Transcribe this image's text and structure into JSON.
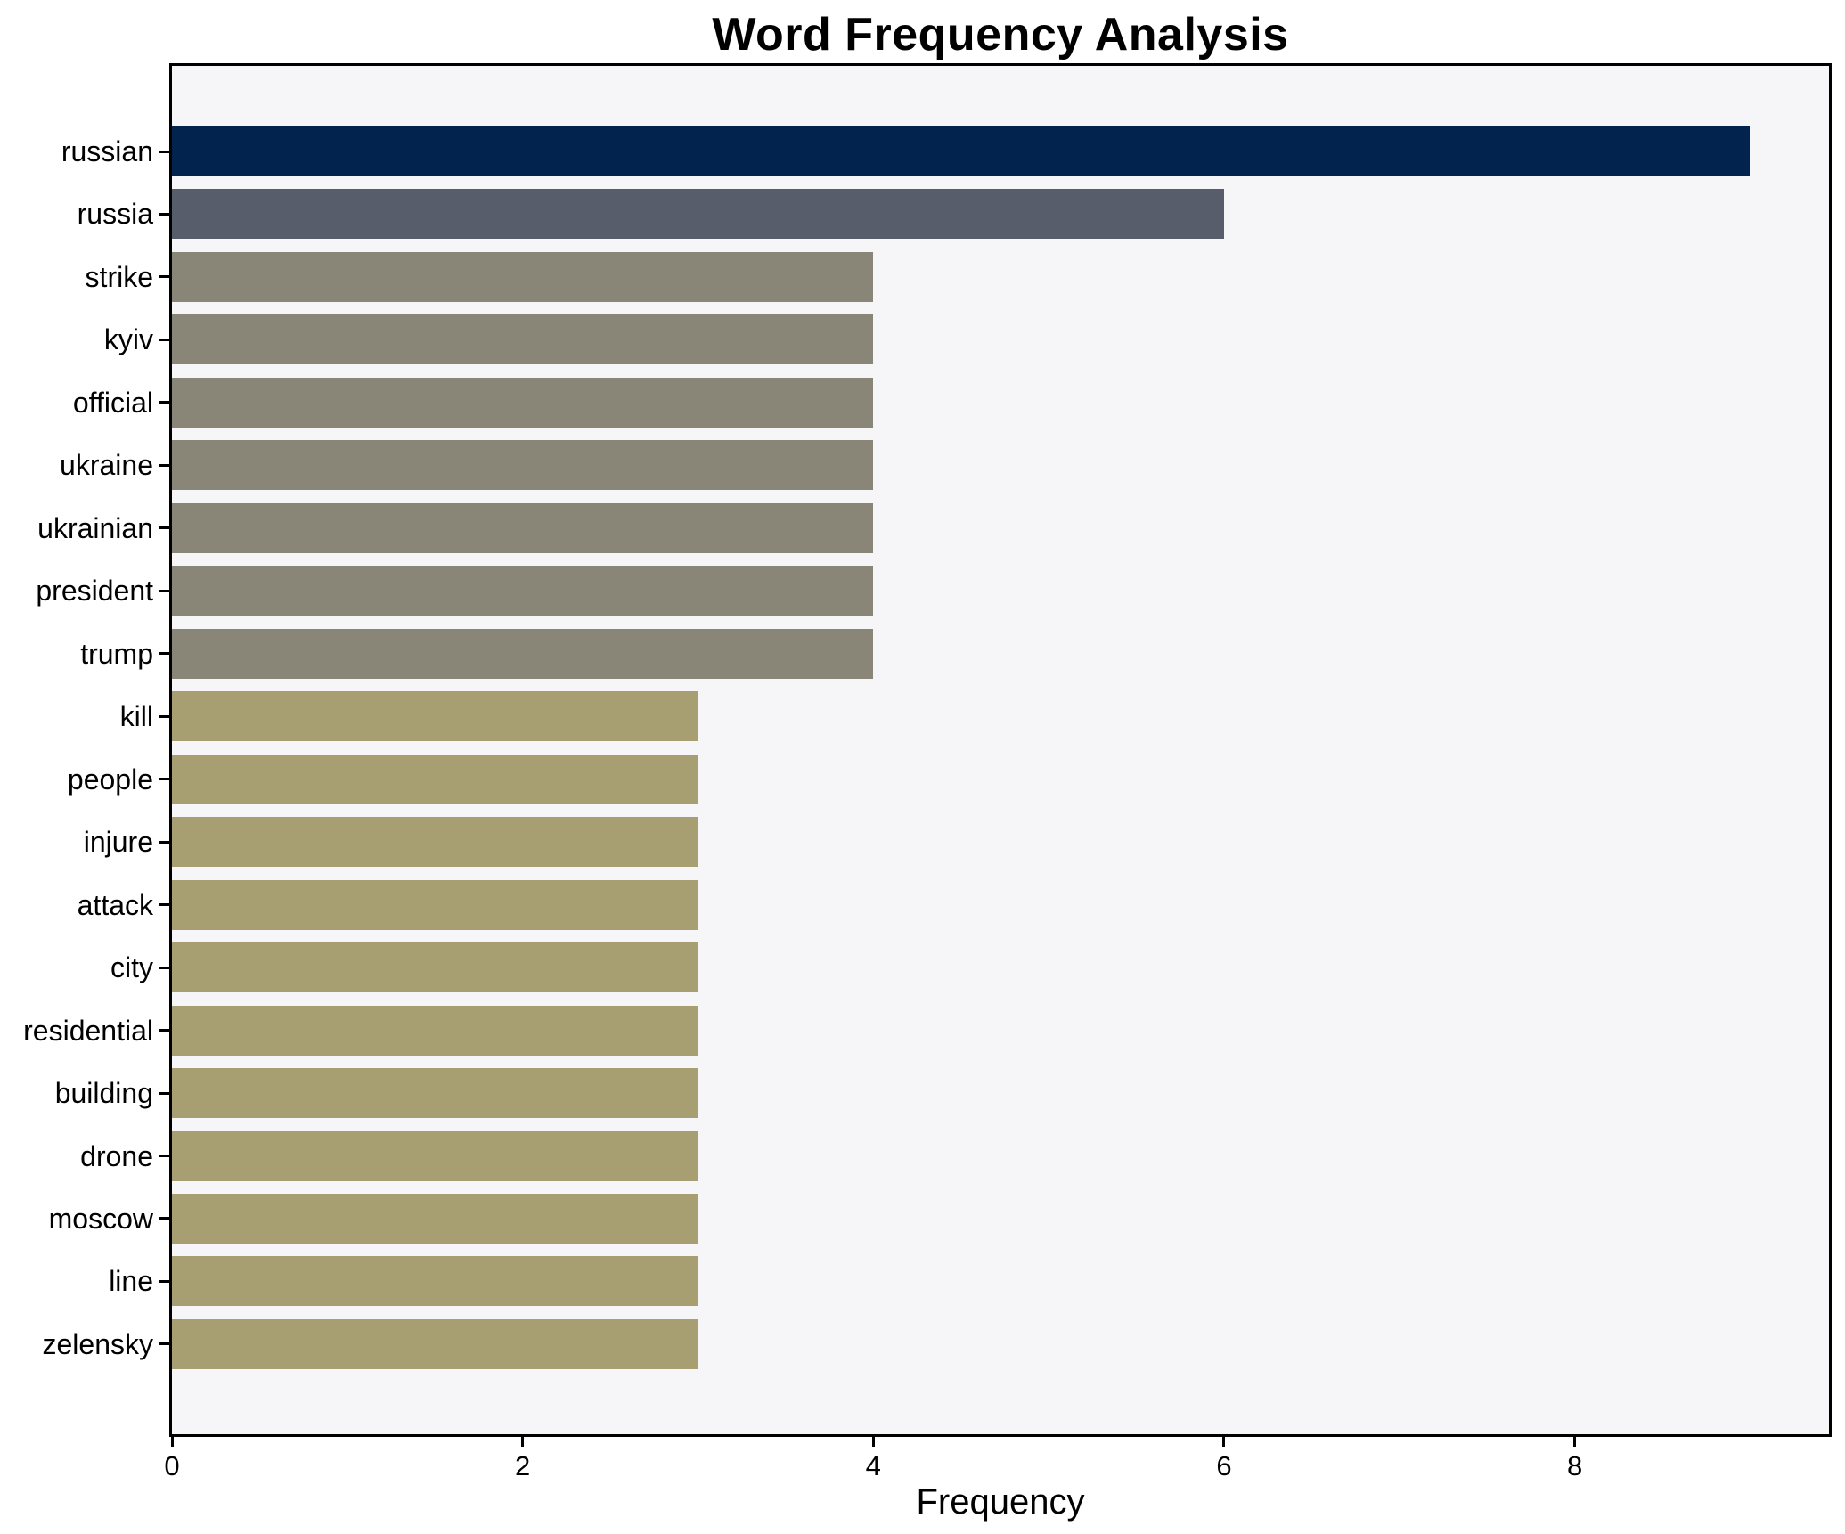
{
  "title": "Word Frequency Analysis",
  "chart_data": {
    "type": "bar",
    "orientation": "horizontal",
    "title": "Word Frequency Analysis",
    "xlabel": "Frequency",
    "ylabel": "",
    "categories": [
      "russian",
      "russia",
      "strike",
      "kyiv",
      "official",
      "ukraine",
      "ukrainian",
      "president",
      "trump",
      "kill",
      "people",
      "injure",
      "attack",
      "city",
      "residential",
      "building",
      "drone",
      "moscow",
      "line",
      "zelensky"
    ],
    "values": [
      9,
      6,
      4,
      4,
      4,
      4,
      4,
      4,
      4,
      3,
      3,
      3,
      3,
      3,
      3,
      3,
      3,
      3,
      3,
      3
    ],
    "bar_colors": [
      "#01234e",
      "#585d6c",
      "#8a8677",
      "#8a8677",
      "#8a8677",
      "#8a8677",
      "#8a8677",
      "#8a8677",
      "#8a8677",
      "#a79e72",
      "#a79e72",
      "#a79e72",
      "#a79e72",
      "#a79e72",
      "#a79e72",
      "#a79e72",
      "#a79e72",
      "#a79e72",
      "#a79e72",
      "#a79e72"
    ],
    "value_color_map": {
      "9": "#01234e",
      "6": "#585d6c",
      "4": "#8a8677",
      "3": "#a79e72"
    },
    "xlim": [
      0,
      9.45
    ],
    "x_ticks": [
      0,
      2,
      4,
      6,
      8
    ],
    "grid": false,
    "legend": false,
    "colors": {
      "figure_bg": "#ffffff",
      "plot_bg": "#f6f6f8",
      "axis": "#000000",
      "text": "#000000"
    }
  }
}
